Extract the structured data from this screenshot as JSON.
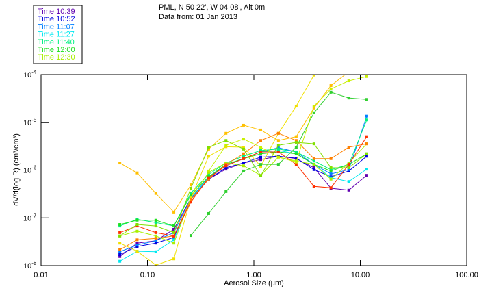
{
  "chart_data": {
    "type": "line",
    "title_lines": [
      "PML, N 50 22', W 04 08', Alt 0m",
      "Data from: 01 Jan 2013"
    ],
    "xlabel": "Aerosol Size (μm)",
    "ylabel": "dV/d(log R) (cm³/cm³)",
    "xscale": "log",
    "yscale": "log",
    "xlim": [
      0.01,
      100
    ],
    "ylim": [
      1e-08,
      0.0001
    ],
    "xtick_labels": [
      "0.01",
      "0.10",
      "1.00",
      "10.00",
      "100.00"
    ],
    "xticks": [
      0.01,
      0.1,
      1,
      10,
      100
    ],
    "ytick_exponents": [
      "-4",
      "-5",
      "-6",
      "-7",
      "-8"
    ],
    "yticks": [
      0.0001,
      1e-05,
      1e-06,
      1e-07,
      1e-08
    ],
    "ytick_base": "10",
    "grid": false,
    "legend_placement": "top-left outside",
    "x": [
      0.055,
      0.08,
      0.12,
      0.177,
      0.256,
      0.376,
      0.547,
      0.8,
      1.16,
      1.7,
      2.5,
      3.67,
      5.3,
      7.8,
      11.5
    ],
    "y_encoding": "log10 of dV/d(log R)",
    "series": [
      {
        "name": "Time 10:39",
        "color": "#6000b0",
        "log10_values": [
          -7.81,
          -7.53,
          -7.48,
          -7.24,
          -6.59,
          -6.19,
          -5.98,
          -5.85,
          -5.78,
          -5.71,
          -5.76,
          -5.95,
          -6.38,
          -6.42,
          -6.11
        ]
      },
      {
        "name": "Time 10:52",
        "color": "#0000e0",
        "log10_values": [
          -7.77,
          -7.6,
          -7.53,
          -7.41,
          -6.62,
          -6.19,
          -5.95,
          -5.85,
          -5.73,
          -5.71,
          -5.75,
          -5.99,
          -6.14,
          -6.02,
          -5.71
        ]
      },
      {
        "name": "Time 11:07",
        "color": "#0080ff",
        "log10_values": [
          -7.71,
          -7.57,
          -7.48,
          -7.31,
          -6.59,
          -6.14,
          -5.91,
          -5.76,
          -5.62,
          -5.53,
          -5.62,
          -5.88,
          -6.08,
          -5.99,
          -4.87
        ]
      },
      {
        "name": "Time 11:27",
        "color": "#00e8f0",
        "log10_values": [
          -7.91,
          -7.7,
          -7.71,
          -7.46,
          -6.62,
          -6.14,
          -5.88,
          -5.76,
          -5.62,
          -5.59,
          -5.66,
          -5.88,
          -6.16,
          -6.24,
          -5.98
        ]
      },
      {
        "name": "Time 11:40",
        "color": "#00f080",
        "log10_values": [
          -7.17,
          -7.03,
          -7.1,
          -7.17,
          -6.48,
          -6.09,
          -5.85,
          -5.71,
          -5.59,
          -5.56,
          -5.62,
          -5.81,
          -5.99,
          -5.88,
          -4.95
        ]
      },
      {
        "name": "Time 12:00",
        "color": "#20e020",
        "log10_values": [
          -7.14,
          -7.05,
          -7.05,
          -7.17,
          -6.52,
          -6.14,
          -5.88,
          -5.76,
          -5.66,
          -5.62,
          -5.66,
          -5.88,
          -6.02,
          -5.88,
          -5.66
        ]
      },
      {
        "name": "Time 12:30",
        "color": "#a8f000",
        "log10_values": [
          -7.38,
          -7.28,
          -7.38,
          -7.53,
          -6.57,
          -6.05,
          -5.85,
          -5.91,
          -6.11,
          -5.73,
          -5.81,
          -5.88,
          -6.19,
          -5.85,
          -5.45
        ]
      },
      {
        "name": "",
        "color": "#f0e000",
        "log10_values": [
          -7.53,
          -7.7,
          -7.99,
          -7.86,
          -6.59,
          -5.71,
          -5.51,
          -5.52,
          -5.92,
          -5.23,
          -4.66,
          -4.01,
          -3.58,
          -3.3,
          -3.15
        ]
      },
      {
        "name": "",
        "color": "#ffc000",
        "log10_values": [
          -5.85,
          -6.06,
          -6.49,
          -6.88,
          -6.31,
          -5.56,
          -5.23,
          -5.06,
          -5.16,
          -5.38,
          -5.3,
          -4.7,
          -4.23,
          -3.94,
          -3.8
        ]
      },
      {
        "name": "",
        "color": "#ff8000",
        "log10_values": [
          -7.67,
          -7.46,
          -7.43,
          -7.38,
          -6.62,
          -6.19,
          -5.88,
          -5.66,
          -5.38,
          -5.23,
          -5.38,
          -5.76,
          -5.76,
          -5.52,
          -5.45
        ]
      },
      {
        "name": "",
        "color": "#ff3000",
        "log10_values": [
          -7.31,
          -7.17,
          -7.31,
          -7.38,
          -6.67,
          -6.16,
          -5.91,
          -5.76,
          -5.62,
          -5.62,
          -5.88,
          -6.34,
          -6.37,
          -5.88,
          -5.3
        ]
      },
      {
        "name": "",
        "color": "#30d030",
        "log10_values": [
          null,
          null,
          null,
          null,
          -7.37,
          -6.91,
          -6.45,
          -6.02,
          -5.88,
          -5.88,
          -5.52,
          -4.8,
          -4.37,
          -4.49,
          -4.52
        ]
      },
      {
        "name": "",
        "color": "#80e000",
        "log10_values": [
          -7.38,
          -7.14,
          -7.17,
          -7.31,
          -6.38,
          -5.52,
          -5.38,
          -5.56,
          -6.12,
          -5.48,
          -5.42,
          -5.45,
          -5.95,
          -5.95,
          -5.66
        ]
      },
      {
        "name": "",
        "color": "#c8f000",
        "log10_values": [
          null,
          null,
          null,
          null,
          null,
          -6.02,
          -5.48,
          -5.35,
          -5.52,
          -5.73,
          -5.83,
          -4.66,
          -4.3,
          -4.13,
          -4.04
        ]
      }
    ]
  }
}
